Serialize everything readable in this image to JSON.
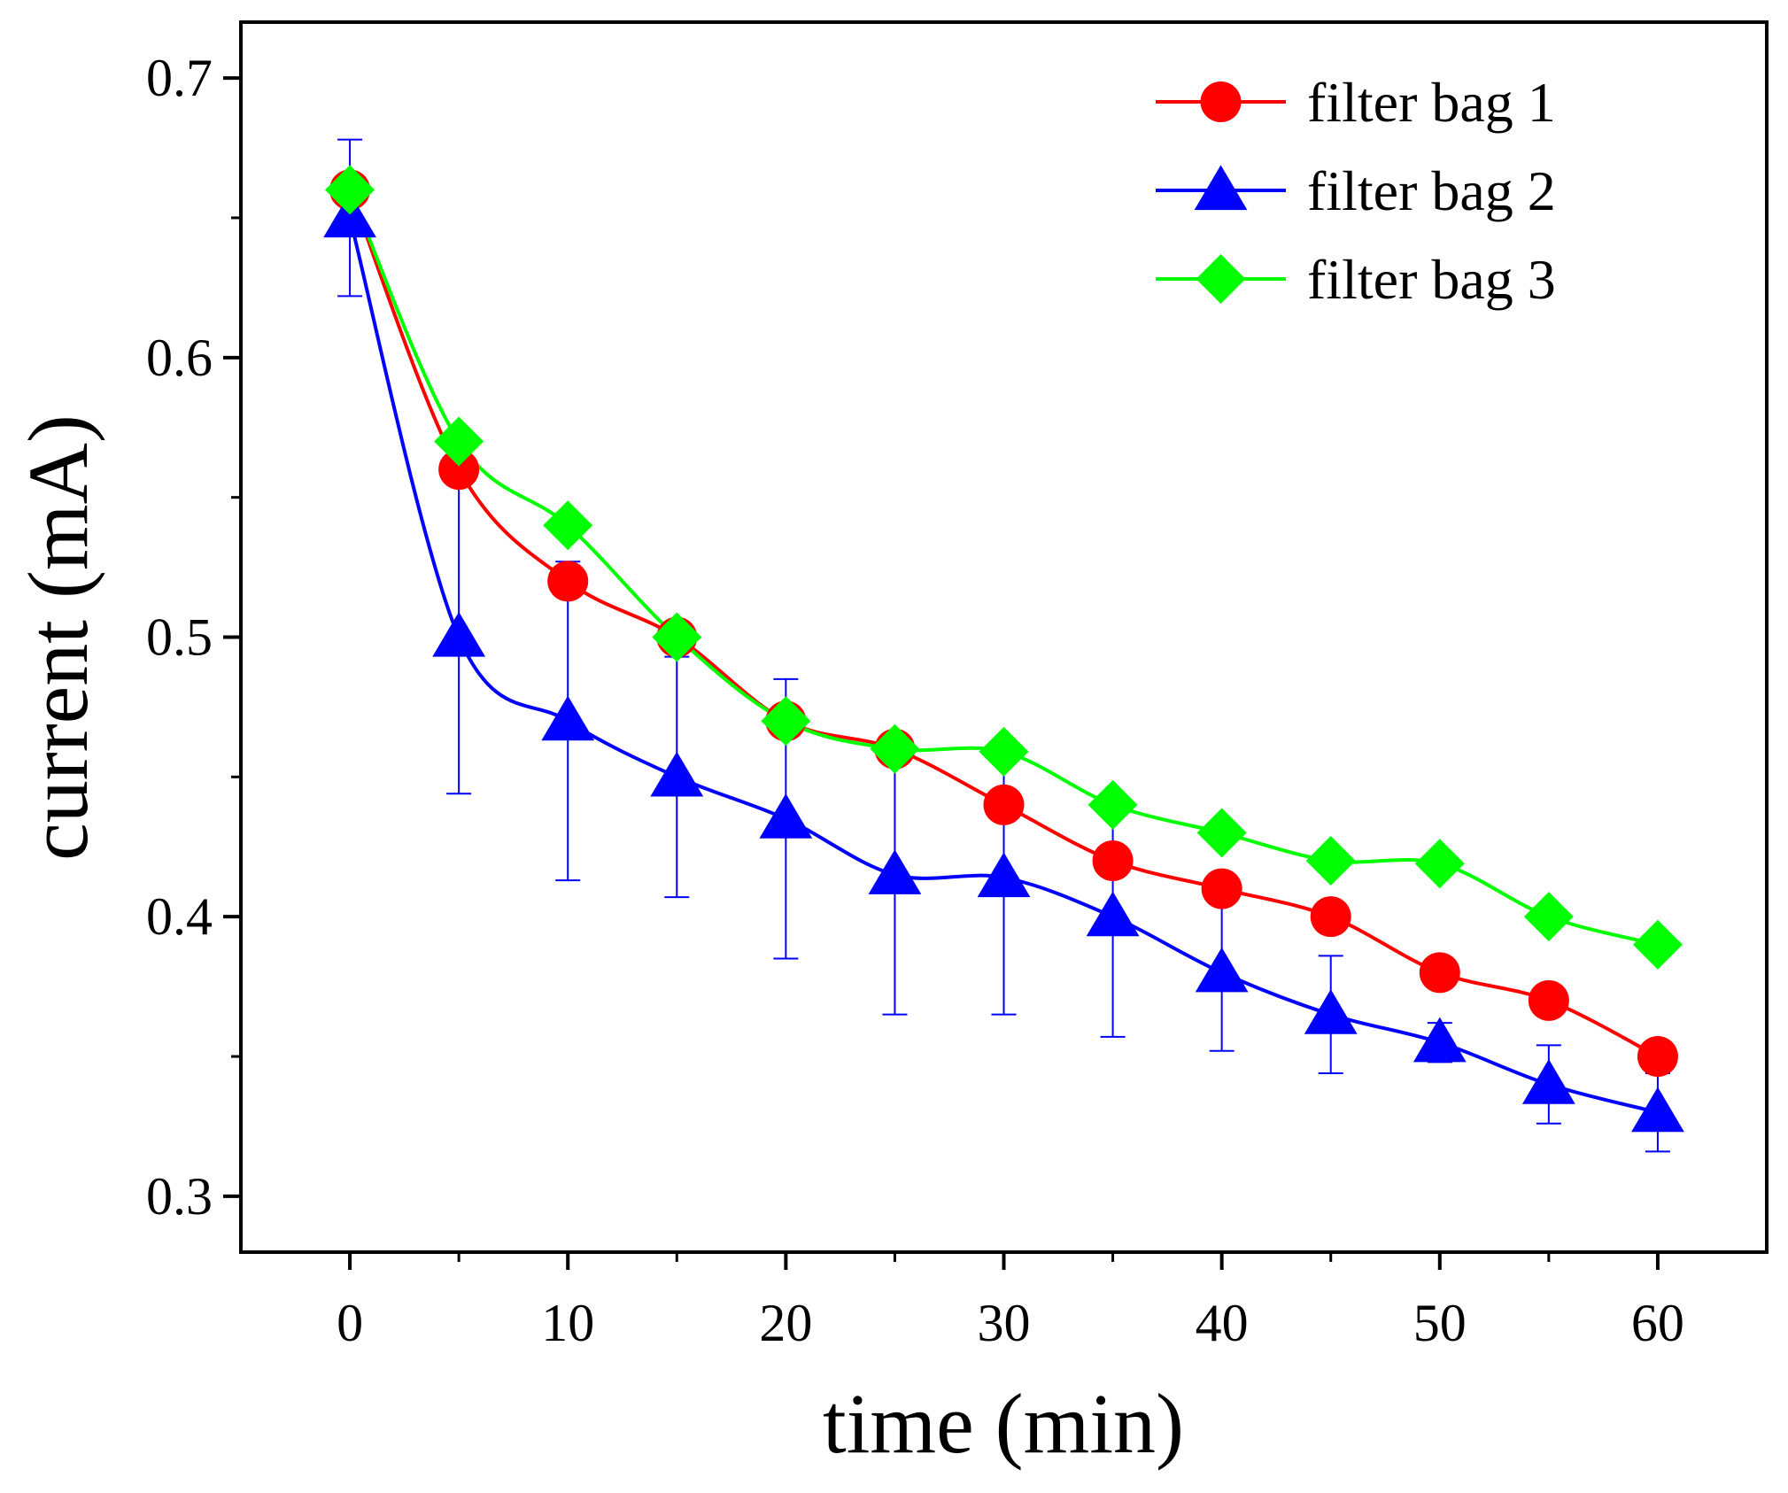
{
  "chart_data": {
    "type": "line",
    "title": "",
    "xlabel": "time (min)",
    "ylabel": "current (mA)",
    "xlim": [
      -5,
      65
    ],
    "ylim": [
      0.28,
      0.72
    ],
    "xticks": [
      0,
      10,
      20,
      30,
      40,
      50,
      60
    ],
    "xtick_labels": [
      "0",
      "10",
      "20",
      "30",
      "40",
      "50",
      "60"
    ],
    "yticks": [
      0.3,
      0.4,
      0.5,
      0.6,
      0.7
    ],
    "ytick_labels": [
      "0.3",
      "0.4",
      "0.5",
      "0.6",
      "0.7"
    ],
    "grid": false,
    "legend_position": "top-right",
    "x": [
      0,
      5,
      10,
      15,
      20,
      25,
      30,
      35,
      40,
      45,
      50,
      55,
      60
    ],
    "series": [
      {
        "name": "filter bag 1",
        "color": "#ff0000",
        "marker": "circle",
        "values": [
          0.66,
          0.56,
          0.52,
          0.5,
          0.47,
          0.46,
          0.44,
          0.42,
          0.41,
          0.4,
          0.38,
          0.37,
          0.35
        ]
      },
      {
        "name": "filter bag 2",
        "color": "#0000ff",
        "marker": "triangle",
        "values": [
          0.65,
          0.5,
          0.47,
          0.45,
          0.435,
          0.415,
          0.414,
          0.4,
          0.38,
          0.365,
          0.355,
          0.34,
          0.33
        ],
        "error": [
          0.028,
          0.056,
          0.057,
          0.043,
          0.05,
          0.05,
          0.049,
          0.043,
          0.028,
          0.021,
          0.007,
          0.014,
          0.014
        ]
      },
      {
        "name": "filter bag 3",
        "color": "#00ff00",
        "marker": "diamond",
        "values": [
          0.66,
          0.57,
          0.54,
          0.5,
          0.47,
          0.46,
          0.459,
          0.44,
          0.43,
          0.42,
          0.419,
          0.4,
          0.39
        ]
      }
    ]
  }
}
